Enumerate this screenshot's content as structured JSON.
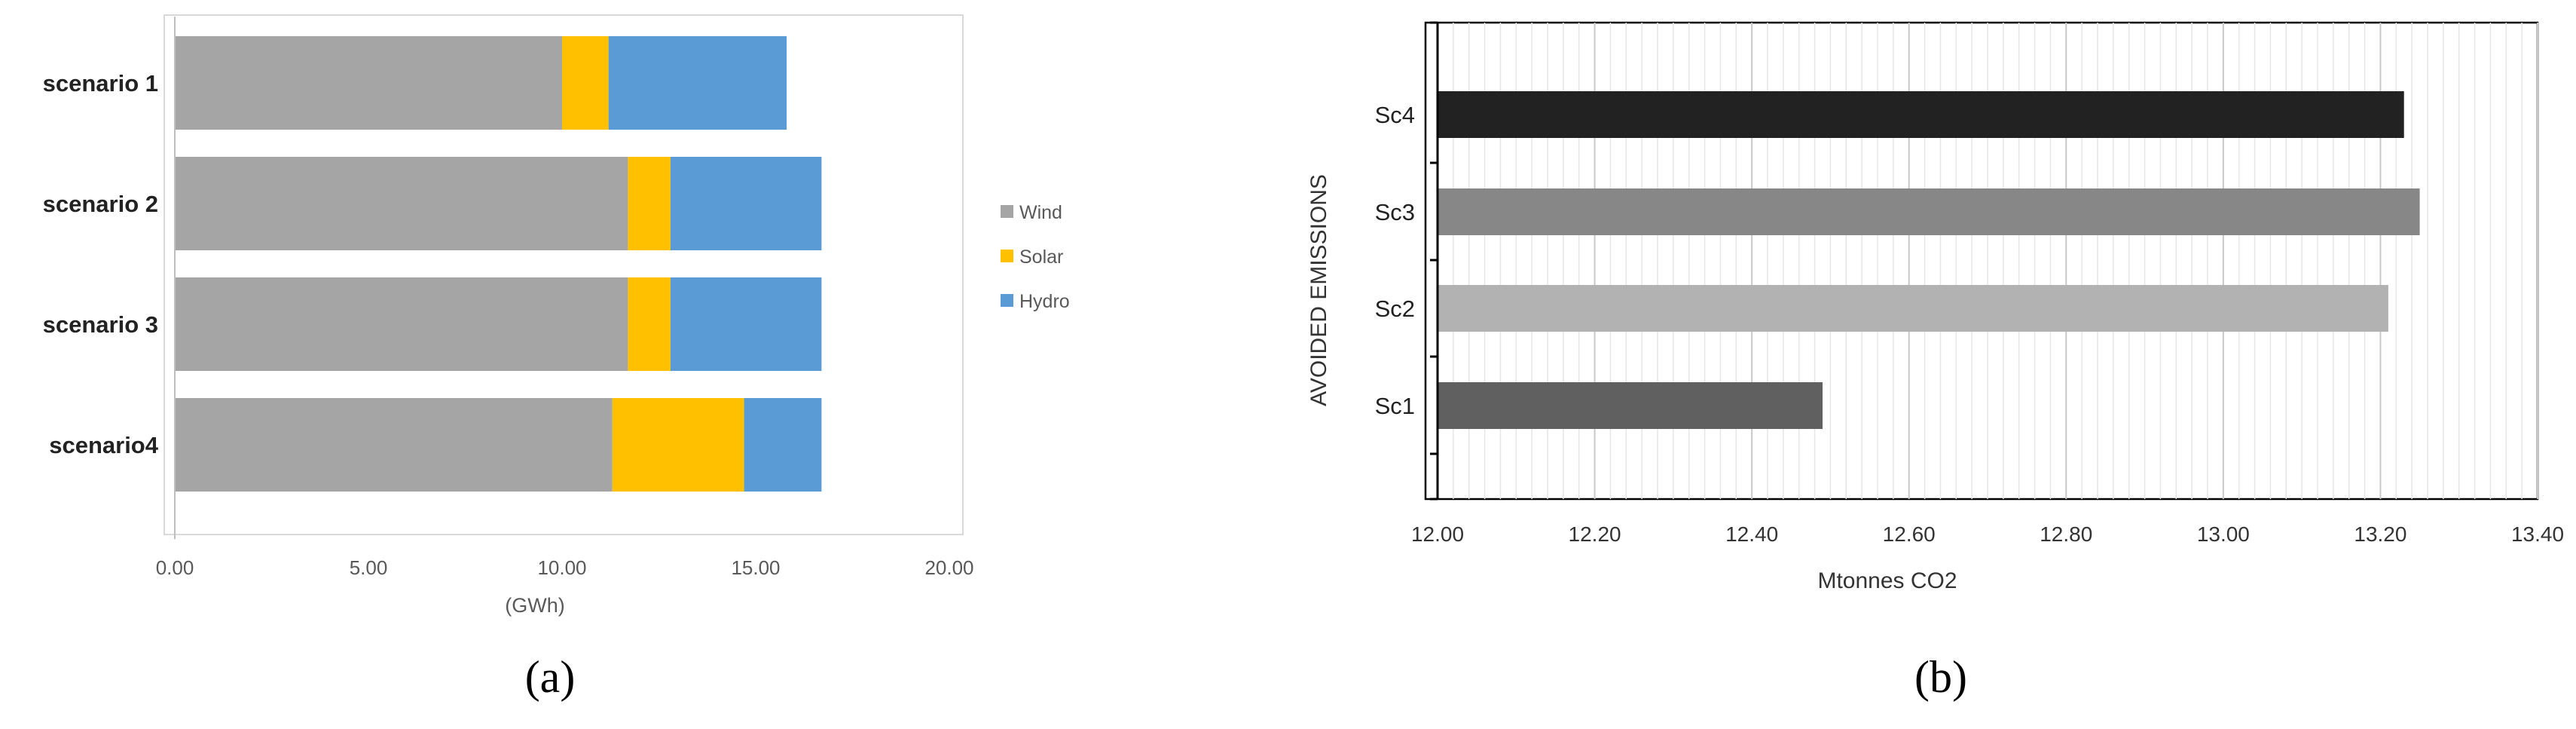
{
  "panels": {
    "a": {
      "label": "(a)"
    },
    "b": {
      "label": "(b)"
    }
  },
  "chart_data": [
    {
      "type": "bar",
      "orientation": "horizontal",
      "stacked": true,
      "categories": [
        "scenario 1",
        "scenario 2",
        "scenario 3",
        "scenario4"
      ],
      "series": [
        {
          "name": "Wind",
          "color": "#a5a5a5",
          "values": [
            10.0,
            11.7,
            11.7,
            11.3
          ]
        },
        {
          "name": "Solar",
          "color": "#ffc000",
          "values": [
            1.2,
            1.1,
            1.1,
            3.4
          ]
        },
        {
          "name": "Hydro",
          "color": "#5b9bd5",
          "values": [
            4.6,
            3.9,
            3.9,
            2.0
          ]
        }
      ],
      "xlim": [
        0,
        20
      ],
      "xticks": [
        "0.00",
        "5.00",
        "10.00",
        "15.00",
        "20.00"
      ],
      "xlabel": "(GWh)",
      "ylabel": "",
      "title": "",
      "legend": "right",
      "grid": false
    },
    {
      "type": "bar",
      "orientation": "horizontal",
      "categories": [
        "Sc4",
        "Sc3",
        "Sc2",
        "Sc1"
      ],
      "values": [
        13.23,
        13.25,
        13.21,
        12.49
      ],
      "colors": [
        "#222222",
        "#878787",
        "#b2b2b2",
        "#606060"
      ],
      "xlim": [
        12.0,
        13.4
      ],
      "xticks": [
        "12.00",
        "12.20",
        "12.40",
        "12.60",
        "12.80",
        "13.00",
        "13.20",
        "13.40"
      ],
      "xlabel": "Mtonnes CO2",
      "ylabel": "AVOIDED EMISSIONS",
      "title": "",
      "grid": true
    }
  ]
}
